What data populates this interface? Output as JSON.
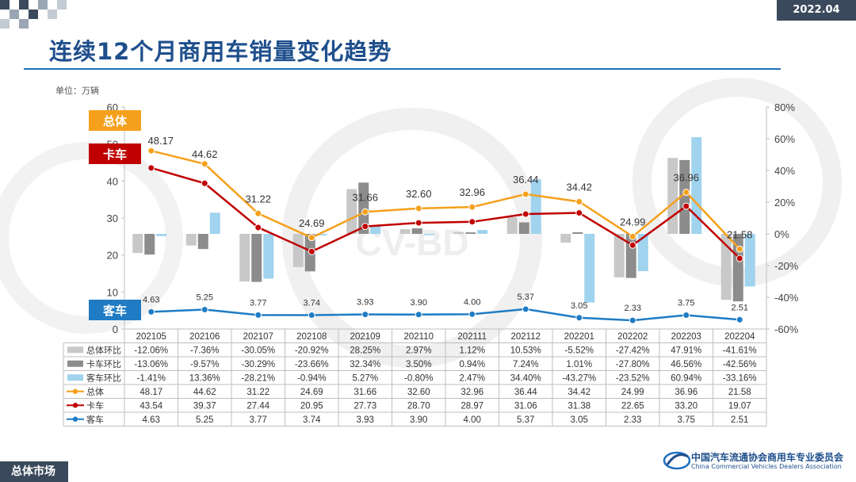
{
  "header": {
    "date": "2022.04",
    "title": "连续12个月商用车销量变化趋势",
    "unit": "单位：万辆"
  },
  "footer": {
    "label": "总体市场",
    "org_cn": "中国汽车流通协会商用车专业委员会",
    "org_en": "China Commercial Vehicles Dealers Association"
  },
  "watermark": "CV-BD",
  "tags": {
    "total": "总体",
    "truck": "卡车",
    "bus": "客车"
  },
  "colors": {
    "total_mom": "#c8c8c8",
    "truck_mom": "#8c8c8c",
    "bus_mom": "#9fd3ee",
    "total": "#f5a01c",
    "truck": "#c00000",
    "bus": "#1f7cc4",
    "title": "#1f4f8c"
  },
  "chart_data": {
    "type": "bar+line",
    "categories": [
      "202105",
      "202106",
      "202107",
      "202108",
      "202109",
      "202110",
      "202111",
      "202112",
      "202201",
      "202202",
      "202203",
      "202204"
    ],
    "left_axis": {
      "min": 0,
      "max": 60,
      "ticks": [
        0,
        10,
        20,
        30,
        40,
        50,
        60
      ],
      "unit": "万辆"
    },
    "right_axis": {
      "min": -60,
      "max": 80,
      "ticks": [
        "80%",
        "60%",
        "40%",
        "20%",
        "0%",
        "-20%",
        "-40%",
        "-60%"
      ]
    },
    "bar_series": [
      {
        "name": "总体环比",
        "values": [
          -12.06,
          -7.36,
          -30.05,
          -20.92,
          28.25,
          2.97,
          1.12,
          10.53,
          -5.52,
          -27.42,
          47.91,
          -41.61
        ],
        "labels": [
          "-12.06%",
          "-7.36%",
          "-30.05%",
          "-20.92%",
          "28.25%",
          "2.97%",
          "1.12%",
          "10.53%",
          "-5.52%",
          "-27.42%",
          "47.91%",
          "-41.61%"
        ]
      },
      {
        "name": "卡车环比",
        "values": [
          -13.06,
          -9.57,
          -30.29,
          -23.66,
          32.34,
          3.5,
          0.94,
          7.24,
          1.01,
          -27.8,
          46.56,
          -42.56
        ],
        "labels": [
          "-13.06%",
          "-9.57%",
          "-30.29%",
          "-23.66%",
          "32.34%",
          "3.50%",
          "0.94%",
          "7.24%",
          "1.01%",
          "-27.80%",
          "46.56%",
          "-42.56%"
        ]
      },
      {
        "name": "客车环比",
        "values": [
          -1.41,
          13.36,
          -28.21,
          -0.94,
          5.27,
          -0.8,
          2.47,
          34.4,
          -43.27,
          -23.52,
          60.94,
          -33.16
        ],
        "labels": [
          "-1.41%",
          "13.36%",
          "-28.21%",
          "-0.94%",
          "5.27%",
          "-0.80%",
          "2.47%",
          "34.40%",
          "-43.27%",
          "-23.52%",
          "60.94%",
          "-33.16%"
        ]
      }
    ],
    "line_series": [
      {
        "name": "总体",
        "values": [
          48.17,
          44.62,
          31.22,
          24.69,
          31.66,
          32.6,
          32.96,
          36.44,
          34.42,
          24.99,
          36.96,
          21.58
        ],
        "labels": [
          "48.17",
          "44.62",
          "31.22",
          "24.69",
          "31.66",
          "32.60",
          "32.96",
          "36.44",
          "34.42",
          "24.99",
          "36.96",
          "21.58"
        ]
      },
      {
        "name": "卡车",
        "values": [
          43.54,
          39.37,
          27.44,
          20.95,
          27.73,
          28.7,
          28.97,
          31.06,
          31.38,
          22.65,
          33.2,
          19.07
        ],
        "labels": [
          "43.54",
          "39.37",
          "27.44",
          "20.95",
          "27.73",
          "28.70",
          "28.97",
          "31.06",
          "31.38",
          "22.65",
          "33.20",
          "19.07"
        ]
      },
      {
        "name": "客车",
        "values": [
          4.63,
          5.25,
          3.77,
          3.74,
          3.93,
          3.9,
          4.0,
          5.37,
          3.05,
          2.33,
          3.75,
          2.51
        ],
        "labels": [
          "4.63",
          "5.25",
          "3.77",
          "3.74",
          "3.93",
          "3.90",
          "4.00",
          "5.37",
          "3.05",
          "2.33",
          "3.75",
          "2.51"
        ]
      }
    ]
  }
}
